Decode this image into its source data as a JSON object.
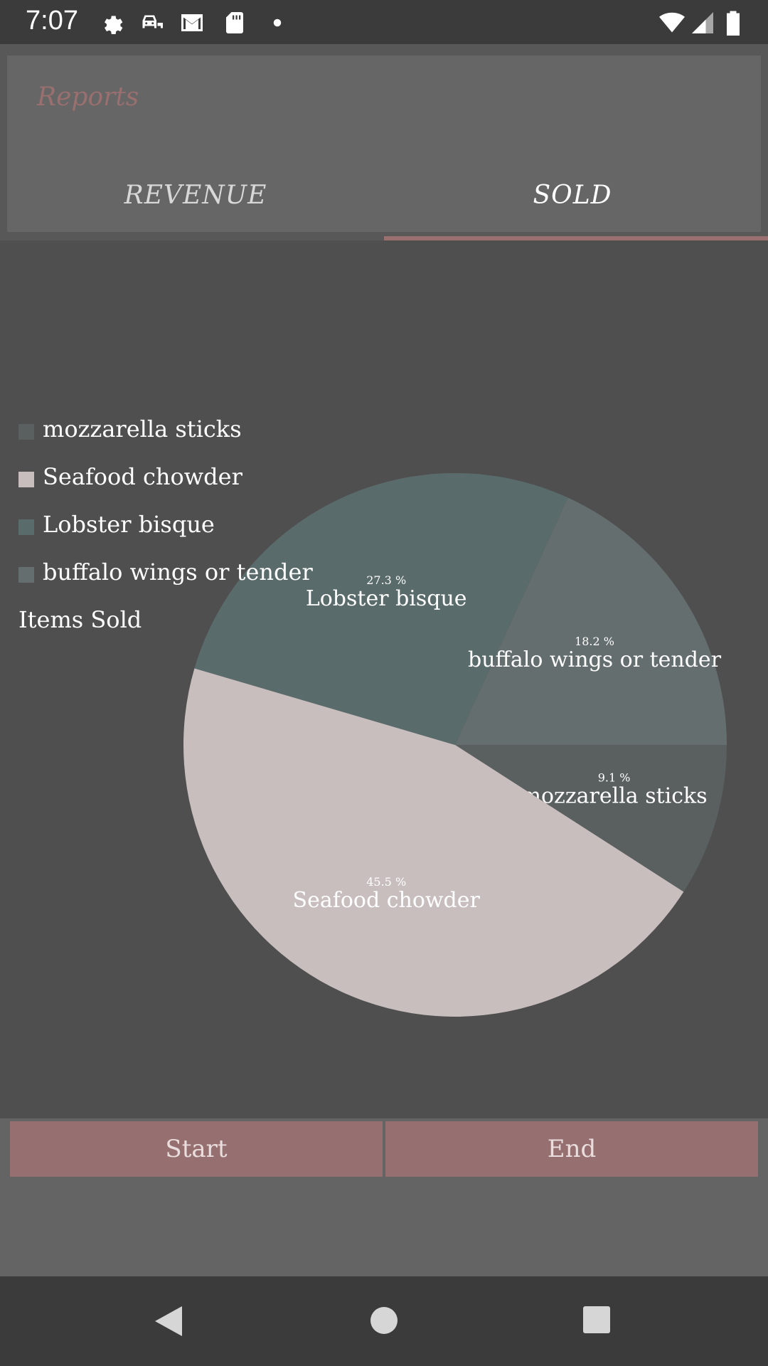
{
  "status_bar": {
    "time": "7:07",
    "icons": [
      "gear-icon",
      "car-icon",
      "mail-icon",
      "sd-card-icon",
      "dot-icon",
      "wifi-icon",
      "signal-icon",
      "battery-icon"
    ]
  },
  "app_bar": {
    "title": "Reports",
    "tabs": [
      {
        "label": "REVENUE",
        "selected": false
      },
      {
        "label": "SOLD",
        "selected": true
      }
    ],
    "accent_color": "#9a6f6f"
  },
  "chart_data": {
    "type": "pie",
    "description": "Items Sold",
    "legend": [
      "mozzarella sticks",
      "Seafood chowder",
      "Lobster bisque",
      "buffalo wings or tender"
    ],
    "slices": [
      {
        "label": "mozzarella sticks",
        "value": 9.1,
        "percent_label": "9.1 %",
        "color": "#5a6060"
      },
      {
        "label": "Seafood chowder",
        "value": 45.5,
        "percent_label": "45.5 %",
        "color": "#c8bebe"
      },
      {
        "label": "Lobster bisque",
        "value": 27.3,
        "percent_label": "27.3 %",
        "color": "#5a6b6b"
      },
      {
        "label": "buffalo wings or tender",
        "value": 18.2,
        "percent_label": "18.2 %",
        "color": "#646e6e"
      }
    ]
  },
  "buttons": {
    "start_label": "Start",
    "end_label": "End"
  },
  "nav_bar": {
    "icons": [
      "back-icon",
      "home-icon",
      "recents-icon"
    ]
  }
}
